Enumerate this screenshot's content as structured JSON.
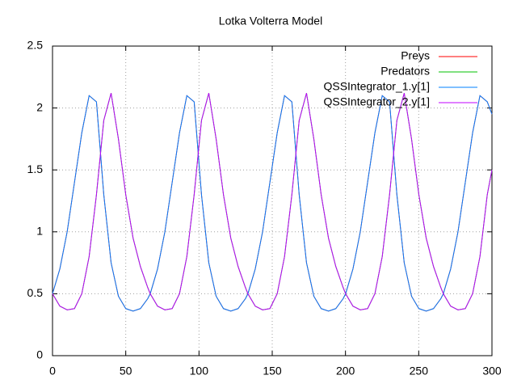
{
  "chart_data": {
    "type": "line",
    "title": "Lotka Volterra Model",
    "x": [
      0,
      5,
      10,
      15,
      20,
      25,
      30,
      35,
      40,
      45,
      50,
      55,
      60,
      65,
      66.7,
      71.7,
      76.7,
      81.7,
      86.7,
      91.7,
      96.7,
      101.7,
      106.7,
      111.7,
      116.7,
      121.7,
      126.7,
      131.7,
      133.4,
      138.4,
      143.4,
      148.4,
      153.4,
      158.4,
      163.4,
      168.4,
      173.4,
      178.4,
      183.4,
      188.4,
      193.4,
      198.4,
      200.1,
      205.1,
      210.1,
      215.1,
      220.1,
      225.1,
      230.1,
      235.1,
      240.1,
      245.1,
      250.1,
      255.1,
      260.1,
      265.1,
      266.8,
      271.8,
      276.8,
      281.8,
      286.8,
      291.8,
      296.8,
      300
    ],
    "series": [
      {
        "name": "Preys",
        "color": "#ff0000",
        "values": [
          0.5,
          0.7,
          1.0,
          1.4,
          1.8,
          2.1,
          2.05,
          1.3,
          0.75,
          0.48,
          0.38,
          0.36,
          0.38,
          0.46,
          0.5,
          0.7,
          1.0,
          1.4,
          1.8,
          2.1,
          2.05,
          1.3,
          0.75,
          0.48,
          0.38,
          0.36,
          0.38,
          0.46,
          0.5,
          0.7,
          1.0,
          1.4,
          1.8,
          2.1,
          2.05,
          1.3,
          0.75,
          0.48,
          0.38,
          0.36,
          0.38,
          0.46,
          0.5,
          0.7,
          1.0,
          1.4,
          1.8,
          2.1,
          2.05,
          1.3,
          0.75,
          0.48,
          0.38,
          0.36,
          0.38,
          0.46,
          0.5,
          0.7,
          1.0,
          1.4,
          1.8,
          2.1,
          2.05,
          1.95
        ]
      },
      {
        "name": "Predators",
        "color": "#00c000",
        "values": [
          0.5,
          0.4,
          0.37,
          0.38,
          0.5,
          0.8,
          1.3,
          1.9,
          2.12,
          1.75,
          1.3,
          0.95,
          0.72,
          0.55,
          0.5,
          0.4,
          0.37,
          0.38,
          0.5,
          0.8,
          1.3,
          1.9,
          2.12,
          1.75,
          1.3,
          0.95,
          0.72,
          0.55,
          0.5,
          0.4,
          0.37,
          0.38,
          0.5,
          0.8,
          1.3,
          1.9,
          2.12,
          1.75,
          1.3,
          0.95,
          0.72,
          0.55,
          0.5,
          0.4,
          0.37,
          0.38,
          0.5,
          0.8,
          1.3,
          1.9,
          2.12,
          1.75,
          1.3,
          0.95,
          0.72,
          0.55,
          0.5,
          0.4,
          0.37,
          0.38,
          0.5,
          0.8,
          1.3,
          1.5
        ]
      },
      {
        "name": "QSSIntegrator_1.y[1]",
        "color": "#0080ff",
        "values": [
          0.5,
          0.7,
          1.0,
          1.4,
          1.8,
          2.1,
          2.05,
          1.3,
          0.75,
          0.48,
          0.38,
          0.36,
          0.38,
          0.46,
          0.5,
          0.7,
          1.0,
          1.4,
          1.8,
          2.1,
          2.05,
          1.3,
          0.75,
          0.48,
          0.38,
          0.36,
          0.38,
          0.46,
          0.5,
          0.7,
          1.0,
          1.4,
          1.8,
          2.1,
          2.05,
          1.3,
          0.75,
          0.48,
          0.38,
          0.36,
          0.38,
          0.46,
          0.5,
          0.7,
          1.0,
          1.4,
          1.8,
          2.1,
          2.05,
          1.3,
          0.75,
          0.48,
          0.38,
          0.36,
          0.38,
          0.46,
          0.5,
          0.7,
          1.0,
          1.4,
          1.8,
          2.1,
          2.05,
          1.95
        ]
      },
      {
        "name": "QSSIntegrator_2.y[1]",
        "color": "#c000ff",
        "values": [
          0.5,
          0.4,
          0.37,
          0.38,
          0.5,
          0.8,
          1.3,
          1.9,
          2.12,
          1.75,
          1.3,
          0.95,
          0.72,
          0.55,
          0.5,
          0.4,
          0.37,
          0.38,
          0.5,
          0.8,
          1.3,
          1.9,
          2.12,
          1.75,
          1.3,
          0.95,
          0.72,
          0.55,
          0.5,
          0.4,
          0.37,
          0.38,
          0.5,
          0.8,
          1.3,
          1.9,
          2.12,
          1.75,
          1.3,
          0.95,
          0.72,
          0.55,
          0.5,
          0.4,
          0.37,
          0.38,
          0.5,
          0.8,
          1.3,
          1.9,
          2.12,
          1.75,
          1.3,
          0.95,
          0.72,
          0.55,
          0.5,
          0.4,
          0.37,
          0.38,
          0.5,
          0.8,
          1.3,
          1.5
        ]
      }
    ],
    "xlim": [
      0,
      300
    ],
    "xticks": [
      0,
      50,
      100,
      150,
      200,
      250,
      300
    ],
    "ylim": [
      0,
      2.5
    ],
    "yticks": [
      0,
      0.5,
      1,
      1.5,
      2,
      2.5
    ],
    "grid": true,
    "legend": "top-right"
  }
}
